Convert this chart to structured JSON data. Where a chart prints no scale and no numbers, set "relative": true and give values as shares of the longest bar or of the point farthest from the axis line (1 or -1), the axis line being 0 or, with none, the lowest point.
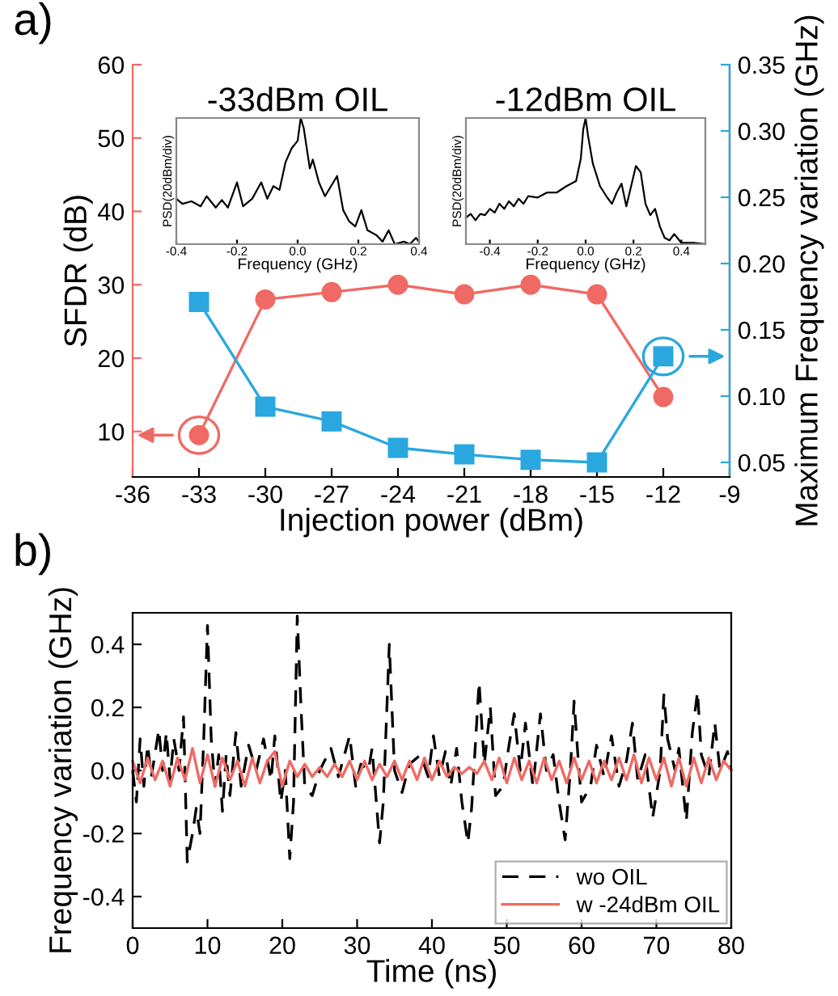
{
  "chart_data": [
    {
      "type": "line",
      "annotations": [
        "a)"
      ],
      "xlabel": "Injection power (dBm)",
      "ylabel": "SFDR (dB)",
      "y2label": "Maximum Frequency variation (GHz)",
      "x": [
        -33,
        -30,
        -27,
        -24,
        -21,
        -18,
        -15,
        -12
      ],
      "series": [
        {
          "color": "#ef6a64",
          "marker": "circle",
          "values": [
            9.5,
            28,
            29,
            30,
            28.7,
            30,
            28.7,
            14.7
          ]
        },
        {
          "color": "#2aa7df",
          "marker": "square",
          "axis": "y2",
          "values": [
            0.171,
            0.092,
            0.081,
            0.061,
            0.056,
            0.052,
            0.05,
            0.13
          ]
        }
      ],
      "xlim": [
        -36,
        -9
      ],
      "xticks": [
        -36,
        -33,
        -30,
        -27,
        -24,
        -21,
        -18,
        -15,
        -12,
        -9
      ],
      "ylim": [
        3.8,
        60
      ],
      "yticks": [
        10,
        20,
        30,
        40,
        50,
        60
      ],
      "y2lim": [
        0.039,
        0.35
      ],
      "y2ticks": [
        {
          "value": 0.05,
          "label": "0.05"
        },
        {
          "value": 0.1,
          "label": "0.10"
        },
        {
          "value": 0.15,
          "label": "0.15"
        },
        {
          "value": 0.2,
          "label": "0.20"
        },
        {
          "value": 0.25,
          "label": "0.25"
        },
        {
          "value": 0.3,
          "label": "0.30"
        },
        {
          "value": 0.35,
          "label": "0.35"
        }
      ],
      "grid": false
    },
    {
      "type": "line",
      "title": "-33dBm OIL",
      "xlabel": "Frequency (GHz)",
      "ylabel": "PSD(20dBm/div)",
      "relative": true,
      "x": [
        -0.4,
        -0.38,
        -0.35,
        -0.32,
        -0.3,
        -0.27,
        -0.25,
        -0.23,
        -0.2,
        -0.18,
        -0.15,
        -0.12,
        -0.1,
        -0.08,
        -0.06,
        -0.04,
        -0.02,
        0.0,
        0.01,
        0.02,
        0.03,
        0.04,
        0.05,
        0.07,
        0.09,
        0.11,
        0.13,
        0.15,
        0.17,
        0.19,
        0.21,
        0.23,
        0.26,
        0.28,
        0.3,
        0.32,
        0.35,
        0.37,
        0.39,
        0.4
      ],
      "series": [
        {
          "color": "#000000",
          "values": [
            0.36,
            0.32,
            0.34,
            0.3,
            0.38,
            0.29,
            0.35,
            0.29,
            0.49,
            0.3,
            0.36,
            0.49,
            0.36,
            0.46,
            0.43,
            0.65,
            0.76,
            0.82,
            1,
            0.92,
            0.76,
            0.6,
            0.67,
            0.49,
            0.38,
            0.46,
            0.54,
            0.27,
            0.18,
            0.14,
            0.27,
            0.11,
            0.07,
            0.02,
            0.11,
            0,
            0.02,
            0,
            0.05,
            0.02
          ]
        }
      ],
      "xlim": [
        -0.4,
        0.4
      ],
      "xticks": [
        -0.4,
        -0.2,
        {
          "value": 0.0,
          "label": "0.0"
        },
        0.2,
        0.4
      ]
    },
    {
      "type": "line",
      "title": "-12dBm OIL",
      "xlabel": "Frequency (GHz)",
      "ylabel": "PSD(20dBm/div)",
      "relative": true,
      "x": [
        -0.5,
        -0.48,
        -0.46,
        -0.44,
        -0.42,
        -0.4,
        -0.38,
        -0.36,
        -0.34,
        -0.32,
        -0.3,
        -0.28,
        -0.26,
        -0.24,
        -0.2,
        -0.16,
        -0.12,
        -0.08,
        -0.04,
        -0.02,
        -0.01,
        0.0,
        0.01,
        0.03,
        0.06,
        0.09,
        0.11,
        0.13,
        0.15,
        0.17,
        0.19,
        0.21,
        0.23,
        0.25,
        0.27,
        0.29,
        0.31,
        0.33,
        0.35,
        0.37,
        0.4,
        0.45,
        0.5
      ],
      "series": [
        {
          "color": "#000000",
          "values": [
            0.21,
            0.24,
            0.19,
            0.24,
            0.23,
            0.28,
            0.25,
            0.32,
            0.28,
            0.34,
            0.3,
            0.36,
            0.32,
            0.38,
            0.37,
            0.41,
            0.41,
            0.46,
            0.5,
            0.68,
            0.91,
            1,
            0.86,
            0.64,
            0.46,
            0.37,
            0.32,
            0.41,
            0.48,
            0.3,
            0.46,
            0.62,
            0.57,
            0.32,
            0.23,
            0.28,
            0.14,
            0.05,
            0.03,
            0.08,
            0.01,
            0.01,
            0
          ]
        }
      ],
      "xlim": [
        -0.5,
        0.5
      ],
      "xticks": [
        -0.4,
        -0.2,
        {
          "value": 0.0,
          "label": "0.0"
        },
        0.2,
        0.4
      ]
    },
    {
      "type": "line",
      "annotations": [
        "b)"
      ],
      "xlabel": "Time (ns)",
      "ylabel": "Frequency variation (GHz)",
      "series": [
        {
          "name": "wo OIL",
          "color": "#000000",
          "line_style": "dashed",
          "x": [
            0.0,
            0.5,
            1.0,
            1.5,
            2.0,
            2.5,
            3.5,
            4.0,
            4.5,
            5.0,
            5.5,
            6.2,
            6.8,
            7.3,
            8.0,
            8.5,
            9.0,
            9.5,
            10.0,
            10.5,
            11.0,
            11.5,
            12.0,
            12.5,
            13.0,
            13.8,
            14.5,
            15.5,
            16.5,
            17.5,
            18.5,
            19.0,
            19.8,
            20.4,
            21.0,
            21.5,
            22.0,
            22.5,
            23.0,
            24.0,
            25.0,
            26.5,
            27.5,
            29.0,
            29.8,
            30.5,
            31.5,
            32.0,
            33.0,
            33.5,
            34.3,
            35.0,
            36.0,
            37.0,
            38.5,
            39.5,
            40.2,
            41.0,
            41.8,
            42.5,
            43.3,
            44.0,
            44.8,
            45.3,
            46.3,
            47.0,
            47.8,
            48.5,
            49.5,
            50.3,
            51.0,
            51.8,
            52.5,
            53.5,
            54.5,
            55.3,
            56.2,
            57.0,
            57.8,
            58.5,
            59.0,
            59.5,
            60.0,
            61.2,
            62.0,
            63.0,
            64.0,
            65.0,
            66.0,
            66.8,
            67.5,
            68.5,
            69.5,
            70.5,
            71.0,
            71.5,
            72.5,
            73.0,
            74.0,
            74.8,
            75.5,
            76.0,
            77.0,
            77.8,
            78.5,
            79.5,
            80.0
          ],
          "values": [
            0.0,
            -0.1,
            0.1,
            -0.05,
            0.08,
            -0.02,
            0.13,
            0.0,
            0.12,
            -0.03,
            0.1,
            0.0,
            0.17,
            -0.29,
            -0.2,
            -0.12,
            -0.2,
            0.1,
            0.46,
            0.1,
            -0.05,
            0.05,
            -0.13,
            0.05,
            -0.08,
            0.12,
            -0.05,
            0.08,
            0.0,
            0.1,
            -0.03,
            0.11,
            -0.1,
            0.0,
            -0.28,
            -0.1,
            0.49,
            0.2,
            -0.05,
            -0.08,
            0.0,
            0.07,
            -0.02,
            0.11,
            -0.05,
            0.02,
            0.0,
            0.07,
            -0.23,
            -0.1,
            0.4,
            0.0,
            -0.07,
            0.02,
            0.05,
            -0.02,
            0.11,
            -0.02,
            0.06,
            -0.05,
            0.07,
            -0.1,
            -0.23,
            -0.12,
            0.28,
            0.02,
            0.2,
            -0.08,
            -0.05,
            0.08,
            0.18,
            0.0,
            0.15,
            -0.05,
            0.18,
            0.0,
            0.05,
            -0.1,
            -0.22,
            0.0,
            0.22,
            0.05,
            -0.1,
            -0.05,
            0.08,
            -0.02,
            0.11,
            -0.05,
            0.03,
            0.15,
            -0.03,
            0.05,
            -0.15,
            0.0,
            0.24,
            0.1,
            0.0,
            0.07,
            -0.16,
            0.12,
            0.25,
            0.05,
            -0.02,
            0.15,
            0.0,
            0.06,
            0.0
          ]
        },
        {
          "name": "w -24dBm OIL",
          "color": "#ef6a64",
          "line_style": "solid",
          "x": [
            0,
            1,
            2,
            3,
            4,
            5,
            6,
            7,
            8,
            9,
            10,
            11,
            12,
            13,
            14,
            15,
            16,
            17,
            18,
            19,
            20,
            21,
            22,
            23,
            24,
            25,
            26,
            27,
            28,
            29,
            30,
            31,
            32,
            33,
            34,
            35,
            36,
            37,
            38,
            39,
            40,
            41,
            42,
            43,
            44,
            45,
            46,
            47,
            48,
            49,
            50,
            51,
            52,
            53,
            54,
            55,
            56,
            57,
            58,
            59,
            60,
            61,
            62,
            63,
            64,
            65,
            66,
            67,
            68,
            69,
            70,
            71,
            72,
            73,
            74,
            75,
            76,
            77,
            78,
            79,
            80
          ],
          "values": [
            0.03,
            -0.04,
            0.04,
            -0.03,
            0.03,
            -0.05,
            0.04,
            -0.03,
            0.07,
            -0.04,
            0.05,
            -0.05,
            0.04,
            -0.03,
            0.03,
            -0.05,
            0.04,
            -0.04,
            0.03,
            0.06,
            -0.05,
            0.03,
            -0.02,
            0.02,
            -0.02,
            0.01,
            -0.02,
            0.02,
            -0.02,
            0.03,
            -0.03,
            0.03,
            -0.03,
            0.02,
            -0.02,
            0.03,
            -0.03,
            0.03,
            -0.03,
            0.04,
            -0.03,
            0.03,
            -0.02,
            0.01,
            -0.01,
            0.01,
            -0.01,
            0.03,
            -0.03,
            0.04,
            -0.04,
            0.04,
            -0.03,
            0.03,
            -0.04,
            0.04,
            -0.03,
            0.03,
            -0.04,
            0.04,
            -0.03,
            0.03,
            -0.04,
            0.03,
            -0.03,
            0.04,
            -0.03,
            0.05,
            -0.04,
            0.04,
            -0.03,
            0.04,
            -0.05,
            0.04,
            -0.05,
            0.04,
            -0.04,
            0.04,
            -0.03,
            0.03,
            0.0
          ]
        }
      ],
      "xlim": [
        0,
        80
      ],
      "xticks": [
        0,
        10,
        20,
        30,
        40,
        50,
        60,
        70,
        80
      ],
      "ylim": [
        -0.5,
        0.5
      ],
      "yticks": [
        -0.4,
        -0.2,
        {
          "value": 0.0,
          "label": "0.0"
        },
        0.2,
        0.4
      ],
      "legend": "lower right",
      "grid": false
    }
  ]
}
